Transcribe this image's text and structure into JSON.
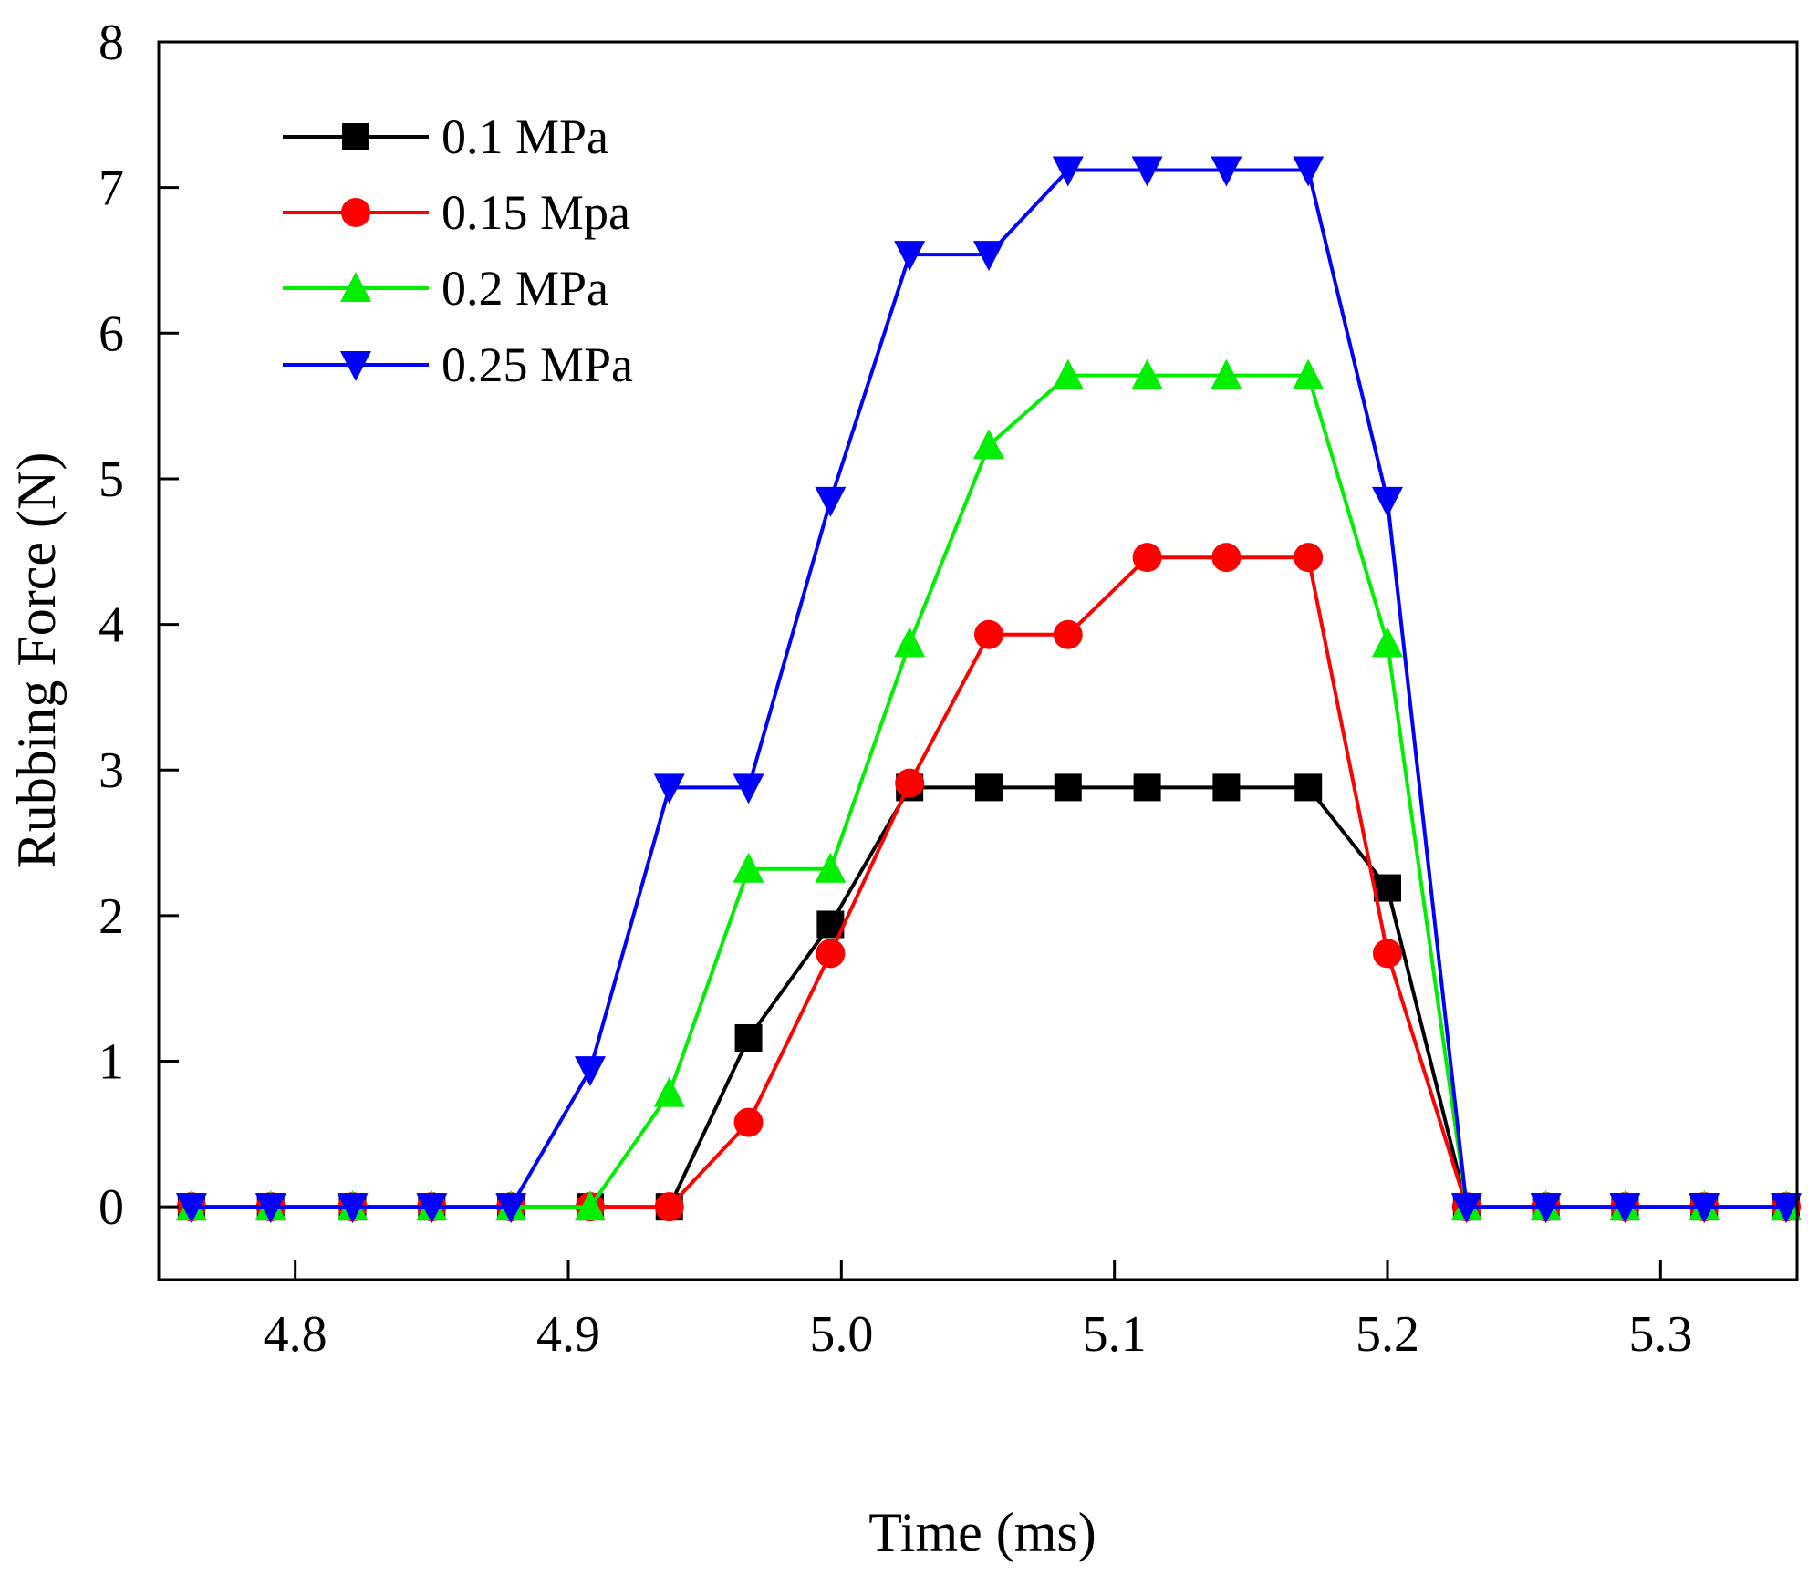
{
  "chart_data": {
    "type": "line",
    "title": "",
    "xlabel": "Time (ms)",
    "ylabel": "Rubbing Force (N)",
    "xlim": [
      4.75,
      5.35
    ],
    "ylim": [
      -0.5,
      8
    ],
    "xticks": [
      4.8,
      4.9,
      5.0,
      5.1,
      5.2,
      5.3
    ],
    "xtick_labels": [
      "4.8",
      "4.9",
      "5.0",
      "5.1",
      "5.2",
      "5.3"
    ],
    "yticks": [
      0,
      1,
      2,
      3,
      4,
      5,
      6,
      7,
      8
    ],
    "ytick_labels": [
      "0",
      "1",
      "2",
      "3",
      "4",
      "5",
      "6",
      "7",
      "8"
    ],
    "grid": false,
    "legend_position": "top-left",
    "x": [
      4.762,
      4.791,
      4.821,
      4.85,
      4.879,
      4.908,
      4.937,
      4.966,
      4.996,
      5.025,
      5.054,
      5.083,
      5.112,
      5.141,
      5.171,
      5.2,
      5.229,
      5.258,
      5.287,
      5.316,
      5.346
    ],
    "series": [
      {
        "name": "0.1 MPa",
        "color": "#000000",
        "marker": "square",
        "values": [
          0,
          0,
          0,
          0,
          0,
          0,
          0,
          1.16,
          1.94,
          2.88,
          2.88,
          2.88,
          2.88,
          2.88,
          2.88,
          2.19,
          0,
          0,
          0,
          0,
          0
        ]
      },
      {
        "name": "0.15 Mpa",
        "color": "#ff0000",
        "marker": "circle",
        "values": [
          0,
          0,
          0,
          0,
          0,
          0,
          0,
          0.58,
          1.74,
          2.91,
          3.93,
          3.93,
          4.46,
          4.46,
          4.46,
          1.74,
          0,
          0,
          0,
          0,
          0
        ]
      },
      {
        "name": "0.2 MPa",
        "color": "#00ee00",
        "marker": "triangle-up",
        "values": [
          0,
          0,
          0,
          0,
          0,
          0,
          0.78,
          2.32,
          2.32,
          3.87,
          5.23,
          5.71,
          5.71,
          5.71,
          5.71,
          3.87,
          0,
          0,
          0,
          0,
          0
        ]
      },
      {
        "name": "0.25 MPa",
        "color": "#0000ff",
        "marker": "triangle-down",
        "values": [
          0,
          0,
          0,
          0,
          0,
          0.94,
          2.88,
          2.88,
          4.85,
          6.54,
          6.54,
          7.12,
          7.12,
          7.12,
          7.12,
          4.85,
          0,
          0,
          0,
          0,
          0
        ]
      }
    ]
  }
}
